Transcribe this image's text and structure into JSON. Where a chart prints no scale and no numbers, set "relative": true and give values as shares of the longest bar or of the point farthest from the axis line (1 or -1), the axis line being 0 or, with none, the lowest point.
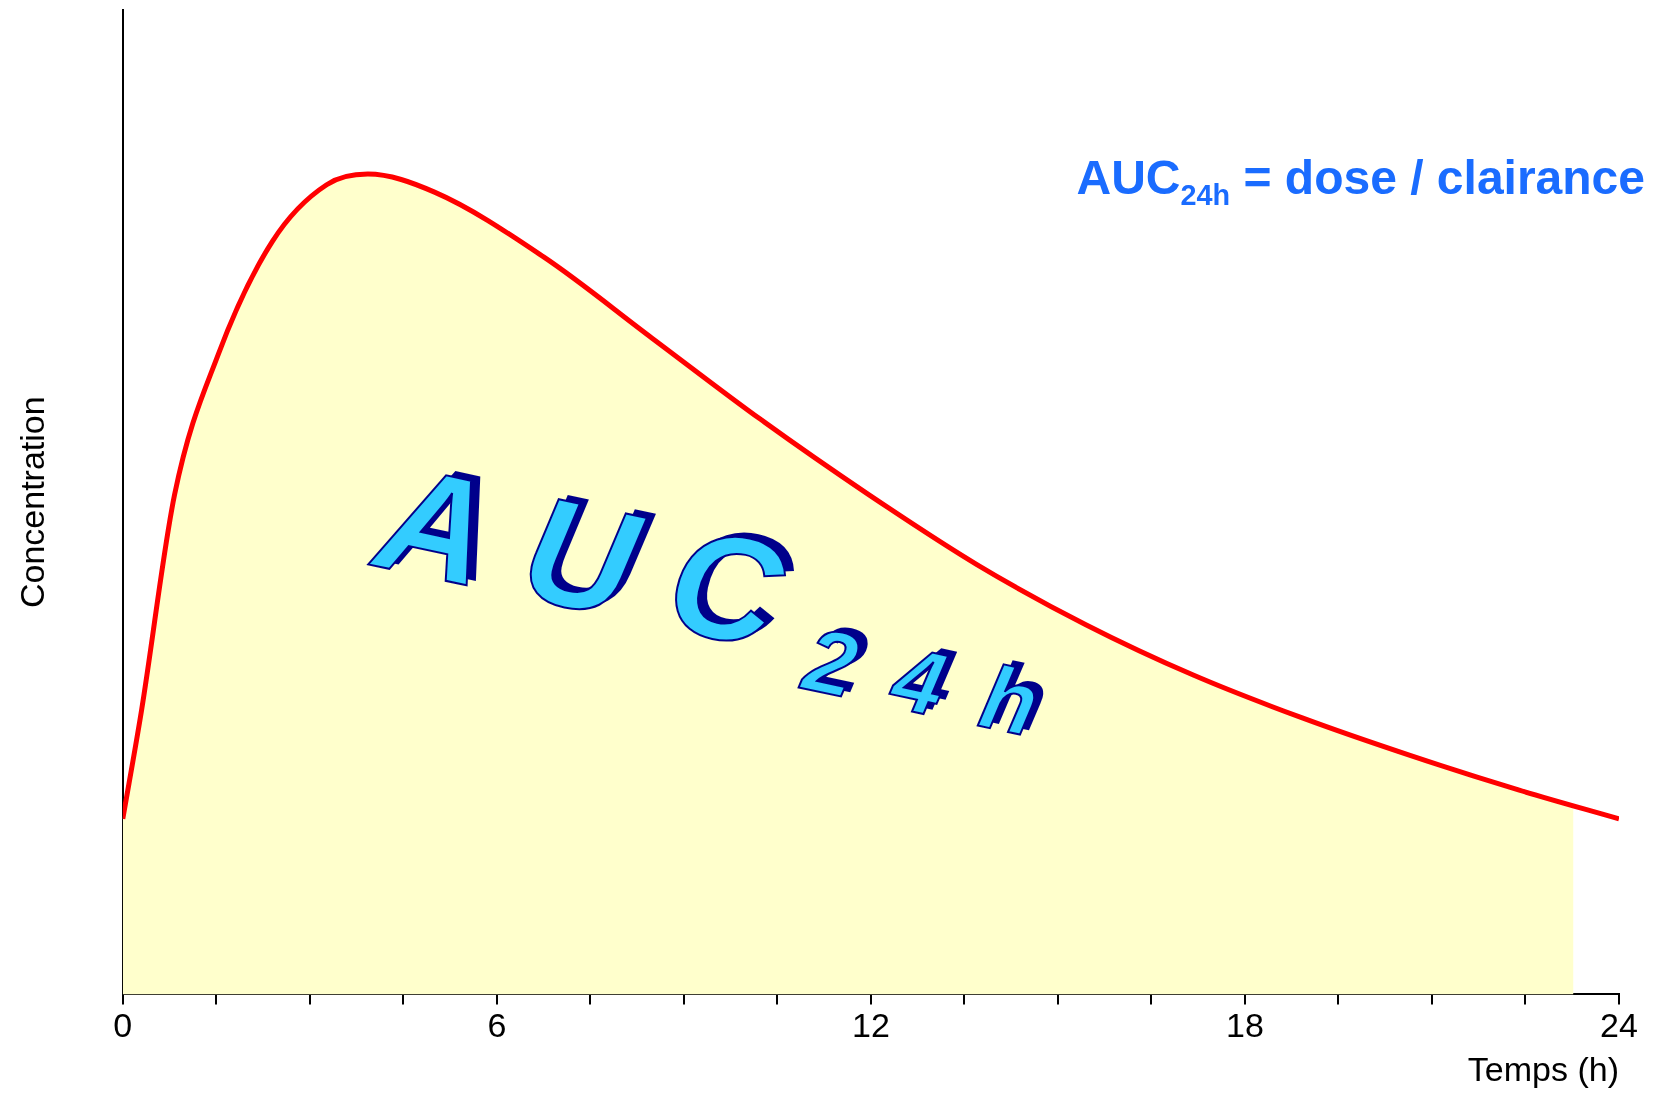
{
  "chart_data": {
    "type": "line",
    "relative": true,
    "xlabel": "Temps (h)",
    "ylabel": "Concentration",
    "xlim": [
      0,
      24
    ],
    "xticks": [
      0,
      {
        "value": 1.5,
        "label": null
      },
      {
        "value": 3,
        "label": null
      },
      {
        "value": 4.5,
        "label": null
      },
      6,
      {
        "value": 7.5,
        "label": null
      },
      {
        "value": 9,
        "label": null
      },
      {
        "value": 10.5,
        "label": null
      },
      12,
      {
        "value": 13.5,
        "label": null
      },
      {
        "value": 15,
        "label": null
      },
      {
        "value": 16.5,
        "label": null
      },
      18,
      {
        "value": 19.5,
        "label": null
      },
      {
        "value": 21,
        "label": null
      },
      {
        "value": 22.5,
        "label": null
      },
      24
    ],
    "series": [
      {
        "type": "area",
        "color": "#ffffcc",
        "x": [
          0,
          0.3,
          0.83,
          1.53,
          2.4,
          3.27,
          3.93,
          5,
          6.75,
          8.49,
          10.23,
          11.97,
          13.7,
          15.44,
          17.18,
          18.92,
          20.66,
          22.4,
          23.27
        ],
        "values": [
          0.214,
          0.346,
          0.609,
          0.78,
          0.918,
          0.987,
          1,
          0.978,
          0.899,
          0.8,
          0.701,
          0.609,
          0.524,
          0.451,
          0.389,
          0.337,
          0.291,
          0.249,
          0.232
        ]
      },
      {
        "color": "#ff0000",
        "x": [
          0,
          0.3,
          0.83,
          1.53,
          2.4,
          3.27,
          3.93,
          5,
          6.75,
          8.49,
          10.23,
          11.97,
          13.7,
          15.44,
          17.18,
          18.92,
          20.66,
          22.4,
          24
        ],
        "values": [
          0.214,
          0.346,
          0.609,
          0.78,
          0.918,
          0.987,
          1,
          0.978,
          0.899,
          0.8,
          0.701,
          0.609,
          0.524,
          0.451,
          0.389,
          0.337,
          0.291,
          0.249,
          0.214
        ]
      }
    ],
    "annotations": [
      "AUC$_{24h}$ = dose / clairance",
      "AUC$_{24h}$"
    ],
    "grid": false,
    "legend": false,
    "marker": "none",
    "line_style": "solid",
    "tick_labels": "x"
  }
}
